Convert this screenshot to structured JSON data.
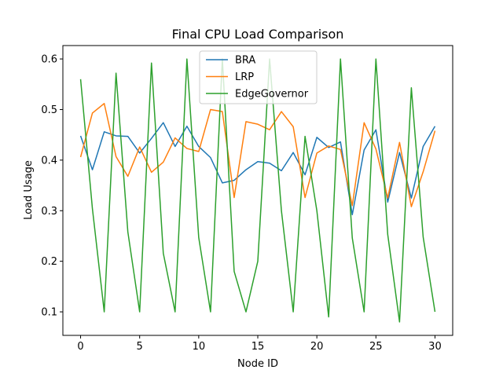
{
  "chart_data": {
    "type": "line",
    "title": "Final CPU Load Comparison",
    "xlabel": "Node ID",
    "ylabel": "Load Usage",
    "xlim": [
      -1.5,
      31.5
    ],
    "ylim": [
      0.0535,
      0.6265
    ],
    "xticks": [
      0,
      5,
      10,
      15,
      20,
      25,
      30
    ],
    "yticks": [
      0.1,
      0.2,
      0.3,
      0.4,
      0.5,
      0.6
    ],
    "ytick_labels": [
      "0.1",
      "0.2",
      "0.3",
      "0.4",
      "0.5",
      "0.6"
    ],
    "grid": false,
    "legend_position": "top-center",
    "x": [
      0,
      1,
      2,
      3,
      4,
      5,
      6,
      7,
      8,
      9,
      10,
      11,
      12,
      13,
      14,
      15,
      16,
      17,
      18,
      19,
      20,
      21,
      22,
      23,
      24,
      25,
      26,
      27,
      28,
      29,
      30
    ],
    "series": [
      {
        "name": "BRA",
        "color": "#1f77b4",
        "values": [
          0.448,
          0.381,
          0.456,
          0.448,
          0.447,
          0.414,
          0.443,
          0.474,
          0.427,
          0.467,
          0.427,
          0.405,
          0.355,
          0.36,
          0.381,
          0.397,
          0.394,
          0.379,
          0.415,
          0.371,
          0.445,
          0.425,
          0.436,
          0.292,
          0.42,
          0.46,
          0.317,
          0.415,
          0.325,
          0.427,
          0.467
        ]
      },
      {
        "name": "LRP",
        "color": "#ff7f0e",
        "values": [
          0.406,
          0.493,
          0.512,
          0.407,
          0.368,
          0.426,
          0.376,
          0.396,
          0.444,
          0.423,
          0.417,
          0.5,
          0.496,
          0.326,
          0.476,
          0.471,
          0.46,
          0.496,
          0.466,
          0.326,
          0.414,
          0.428,
          0.421,
          0.31,
          0.474,
          0.422,
          0.325,
          0.435,
          0.308,
          0.377,
          0.458
        ]
      },
      {
        "name": "EdgeGovernor",
        "color": "#2ca02c",
        "values": [
          0.56,
          0.304,
          0.1,
          0.572,
          0.258,
          0.1,
          0.592,
          0.216,
          0.1,
          0.6,
          0.247,
          0.1,
          0.6,
          0.18,
          0.1,
          0.2,
          0.6,
          0.3,
          0.1,
          0.447,
          0.3,
          0.09,
          0.6,
          0.246,
          0.1,
          0.6,
          0.253,
          0.08,
          0.543,
          0.248,
          0.1
        ]
      }
    ]
  }
}
